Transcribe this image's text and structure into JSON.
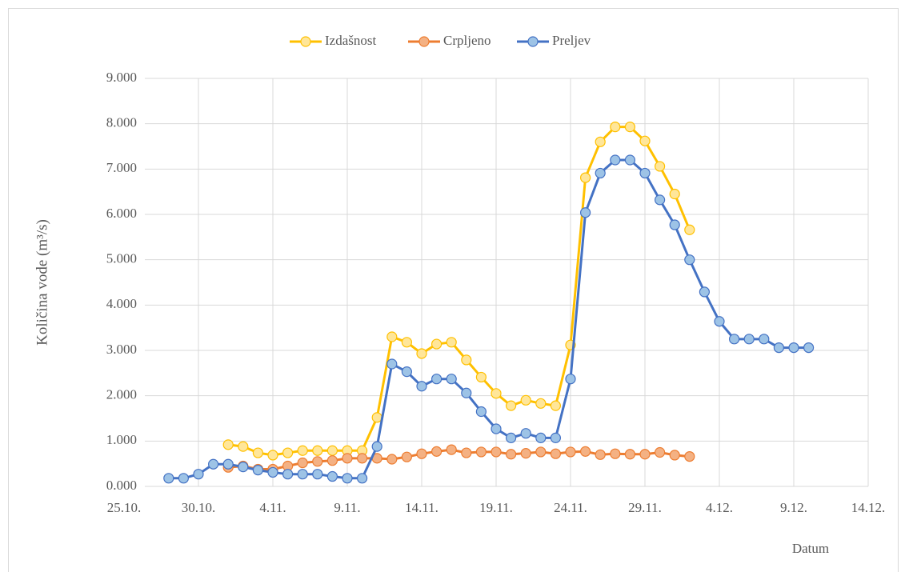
{
  "chart_data": {
    "type": "line",
    "y_label": "Količina vode  (m³/s)",
    "x_label": "Datum",
    "x": [
      "28.10.",
      "29.10.",
      "30.10.",
      "31.10.",
      "1.11.",
      "2.11.",
      "3.11.",
      "4.11.",
      "5.11.",
      "6.11.",
      "7.11.",
      "8.11.",
      "9.11.",
      "10.11.",
      "11.11.",
      "12.11.",
      "13.11.",
      "14.11.",
      "15.11.",
      "16.11.",
      "17.11.",
      "18.11.",
      "19.11.",
      "20.11.",
      "21.11.",
      "22.11.",
      "23.11.",
      "24.11.",
      "25.11.",
      "26.11.",
      "27.11.",
      "28.11.",
      "29.11.",
      "30.11.",
      "1.12.",
      "2.12.",
      "3.12.",
      "4.12.",
      "5.12.",
      "6.12.",
      "7.12.",
      "8.12.",
      "9.12.",
      "10.12."
    ],
    "series": [
      {
        "name": "Izdašnost",
        "color": "#ffc000",
        "marker_fill": "#ffe699",
        "values": [
          null,
          null,
          null,
          null,
          0.92,
          0.88,
          0.74,
          0.69,
          0.74,
          0.79,
          0.79,
          0.79,
          0.79,
          0.79,
          1.52,
          3.3,
          3.18,
          2.93,
          3.14,
          3.18,
          2.79,
          2.41,
          2.05,
          1.78,
          1.9,
          1.83,
          1.78,
          3.12,
          6.81,
          7.6,
          7.93,
          7.93,
          7.62,
          7.06,
          6.45,
          5.66,
          null,
          null,
          null,
          null,
          null,
          null,
          null,
          null
        ]
      },
      {
        "name": "Crpljeno",
        "color": "#ed7d31",
        "marker_fill": "#f4b183",
        "values": [
          null,
          null,
          null,
          null,
          0.42,
          0.45,
          0.38,
          0.38,
          0.45,
          0.52,
          0.55,
          0.57,
          0.62,
          0.62,
          0.62,
          0.6,
          0.65,
          0.72,
          0.77,
          0.81,
          0.74,
          0.76,
          0.76,
          0.71,
          0.73,
          0.76,
          0.72,
          0.76,
          0.77,
          0.7,
          0.72,
          0.71,
          0.71,
          0.75,
          0.69,
          0.66,
          null,
          null,
          null,
          null,
          null,
          null,
          null,
          null
        ]
      },
      {
        "name": "Preljev",
        "color": "#4472c4",
        "marker_fill": "#9dc3e6",
        "values": [
          0.18,
          0.18,
          0.27,
          0.49,
          0.49,
          0.43,
          0.36,
          0.31,
          0.27,
          0.27,
          0.27,
          0.22,
          0.18,
          0.18,
          0.88,
          2.7,
          2.53,
          2.21,
          2.37,
          2.37,
          2.06,
          1.65,
          1.27,
          1.07,
          1.17,
          1.07,
          1.07,
          2.37,
          6.04,
          6.91,
          7.2,
          7.2,
          6.91,
          6.32,
          5.77,
          5.0,
          4.29,
          3.64,
          3.25,
          3.25,
          3.25,
          3.06,
          3.06,
          3.06
        ]
      }
    ],
    "xlim": [
      "25.10.",
      "14.12."
    ],
    "xticks": [
      "25.10.",
      "30.10.",
      "4.11.",
      "9.11.",
      "14.11.",
      "19.11.",
      "24.11.",
      "29.11.",
      "4.12.",
      "9.12.",
      "14.12."
    ],
    "ylim": [
      0,
      9
    ],
    "yticks": [
      {
        "value": 0,
        "label": "0.000"
      },
      {
        "value": 1,
        "label": "1.000"
      },
      {
        "value": 2,
        "label": "2.000"
      },
      {
        "value": 3,
        "label": "3.000"
      },
      {
        "value": 4,
        "label": "4.000"
      },
      {
        "value": 5,
        "label": "5.000"
      },
      {
        "value": 6,
        "label": "6.000"
      },
      {
        "value": 7,
        "label": "7.000"
      },
      {
        "value": 8,
        "label": "8.000"
      },
      {
        "value": 9,
        "label": "9.000"
      }
    ],
    "grid": true,
    "legend": "top"
  }
}
